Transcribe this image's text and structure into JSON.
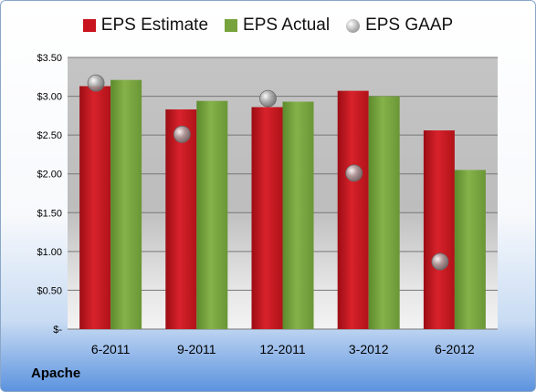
{
  "company": "Apache",
  "chart_data": {
    "type": "bar",
    "categories": [
      "6-2011",
      "9-2011",
      "12-2011",
      "3-2012",
      "6-2012"
    ],
    "series": [
      {
        "name": "EPS Estimate",
        "values": [
          3.13,
          2.83,
          2.86,
          3.07,
          2.56
        ],
        "color": "#c8141e"
      },
      {
        "name": "EPS Actual",
        "values": [
          3.21,
          2.94,
          2.93,
          3.0,
          2.05
        ],
        "color": "#77a33c"
      },
      {
        "name": "EPS GAAP",
        "values": [
          3.17,
          2.51,
          2.97,
          2.01,
          0.87
        ],
        "color": "#a0a0a0",
        "style": "marker"
      }
    ],
    "ylim": [
      0,
      3.5
    ],
    "yticks": [
      0,
      0.5,
      1.0,
      1.5,
      2.0,
      2.5,
      3.0,
      3.5
    ],
    "ytick_labels": [
      "$-",
      "$0.50",
      "$1.00",
      "$1.50",
      "$2.00",
      "$2.50",
      "$3.00",
      "$3.50"
    ],
    "grid": true,
    "legend_position": "top"
  }
}
